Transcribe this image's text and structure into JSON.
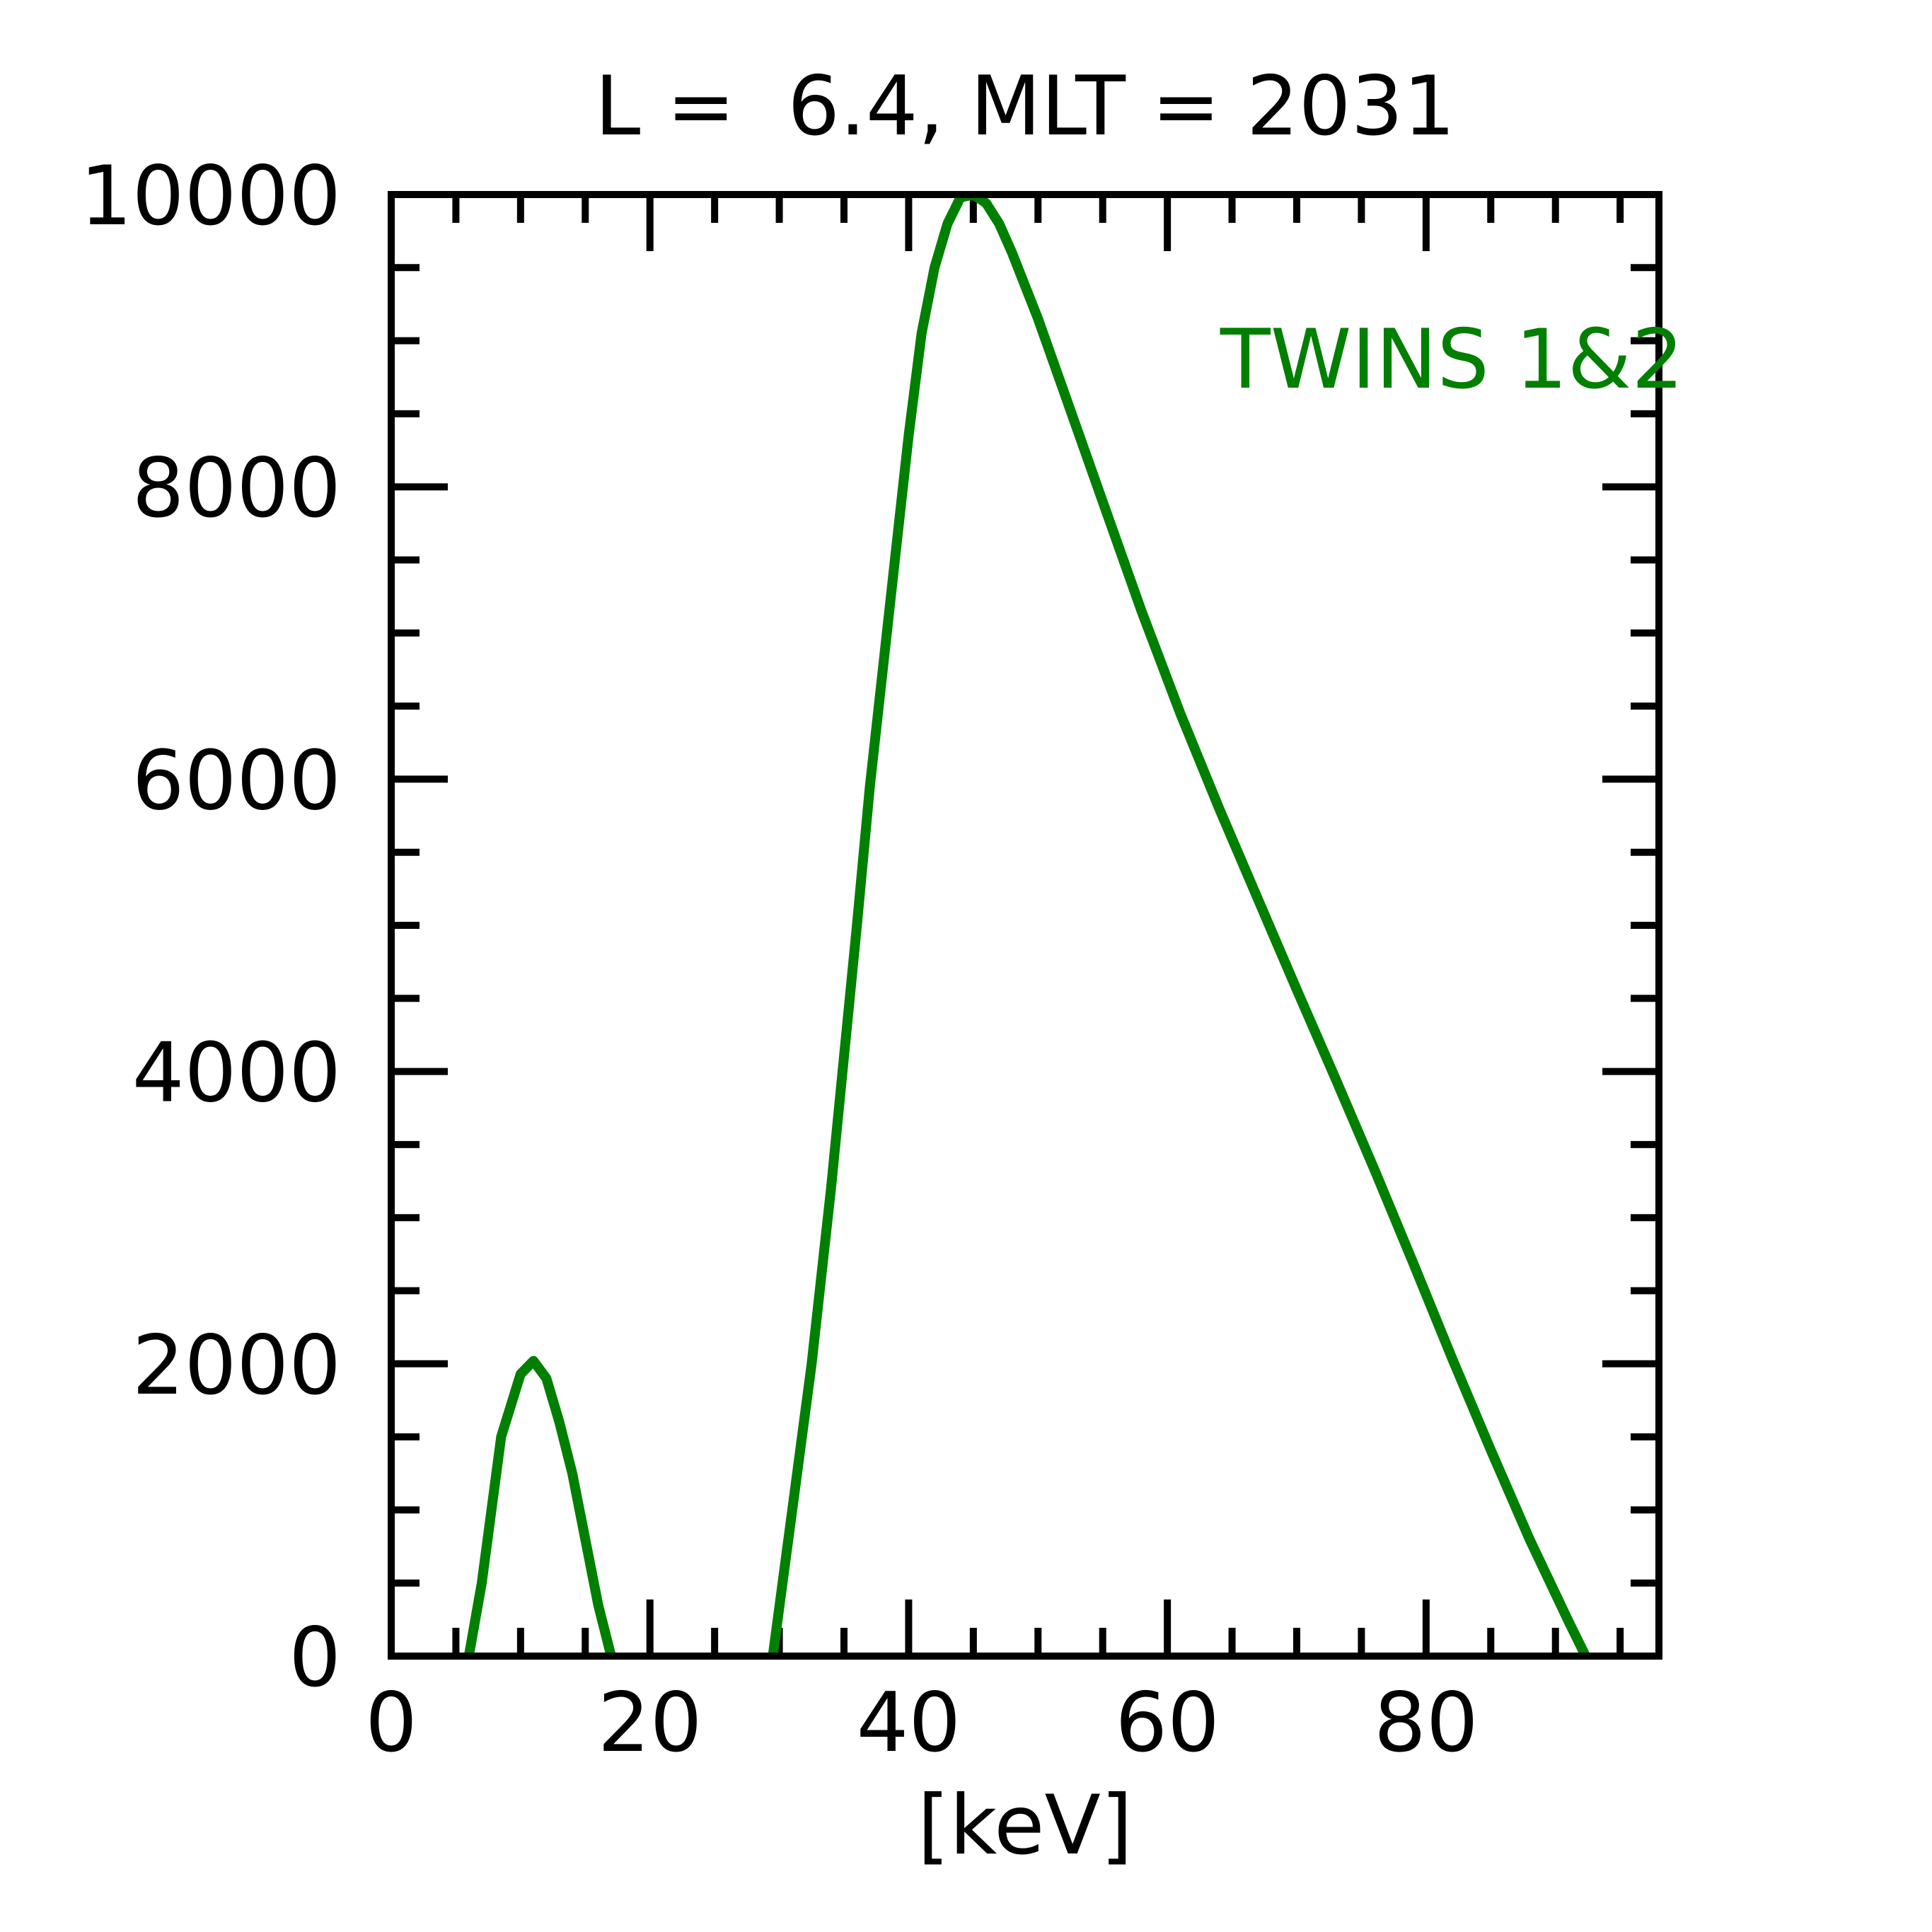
{
  "chart_data": {
    "type": "line",
    "title": "L =  6.4, MLT = 2031",
    "xlabel": "[keV]",
    "ylabel": "",
    "xlim": [
      0,
      98
    ],
    "ylim": [
      0,
      10000
    ],
    "x_major_ticks": [
      0,
      20,
      40,
      60,
      80
    ],
    "x_tick_labels": [
      "0",
      "20",
      "40",
      "60",
      "80"
    ],
    "x_minor_step": 5,
    "y_major_ticks": [
      0,
      2000,
      4000,
      6000,
      8000,
      10000
    ],
    "y_tick_labels": [
      "0",
      "2000",
      "4000",
      "6000",
      "8000",
      "10000"
    ],
    "y_minor_step": 500,
    "grid": false,
    "legend": "top-right",
    "series": [
      {
        "name": "TWINS 1&2",
        "color": "#007f00",
        "segments": [
          [
            [
              6,
              0
            ],
            [
              7,
              500
            ],
            [
              8.5,
              1500
            ],
            [
              10,
              1930
            ],
            [
              11,
              2020
            ],
            [
              12,
              1900
            ],
            [
              13,
              1600
            ],
            [
              14,
              1250
            ],
            [
              15,
              800
            ],
            [
              16,
              350
            ],
            [
              17,
              0
            ]
          ],
          [
            [
              29.5,
              0
            ],
            [
              31,
              1000
            ],
            [
              32.5,
              2000
            ],
            [
              34,
              3200
            ],
            [
              35,
              4100
            ],
            [
              36,
              5000
            ],
            [
              37,
              5950
            ],
            [
              38,
              6750
            ],
            [
              39,
              7550
            ],
            [
              40,
              8350
            ],
            [
              41,
              9050
            ],
            [
              42,
              9500
            ],
            [
              43,
              9800
            ],
            [
              44,
              9980
            ],
            [
              45,
              10000
            ],
            [
              46,
              9940
            ],
            [
              47,
              9800
            ],
            [
              48,
              9600
            ],
            [
              50,
              9150
            ],
            [
              52,
              8650
            ],
            [
              55,
              7900
            ],
            [
              58,
              7150
            ],
            [
              61,
              6450
            ],
            [
              64,
              5800
            ],
            [
              67,
              5180
            ],
            [
              70,
              4560
            ],
            [
              73,
              3950
            ],
            [
              76,
              3330
            ],
            [
              79,
              2690
            ],
            [
              82,
              2040
            ],
            [
              85,
              1410
            ],
            [
              88,
              800
            ],
            [
              91,
              240
            ],
            [
              94,
              -300
            ],
            [
              96,
              -600
            ],
            [
              98,
              -800
            ]
          ]
        ]
      }
    ]
  }
}
